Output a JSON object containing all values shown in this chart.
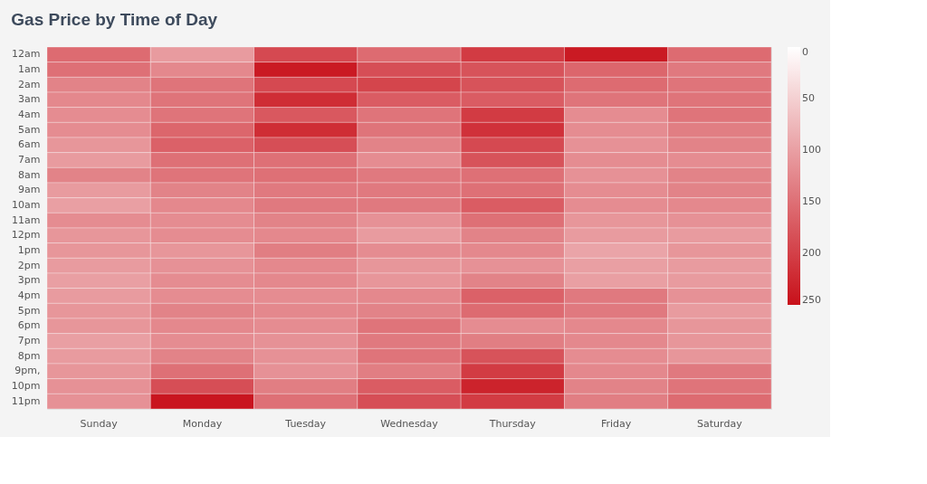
{
  "chart_data": {
    "type": "heatmap",
    "title": "Gas Price by Time of Day",
    "categories": [
      "Sunday",
      "Monday",
      "Tuesday",
      "Wednesday",
      "Thursday",
      "Friday",
      "Saturday"
    ],
    "y_categories": [
      "12am",
      "1am",
      "2am",
      "3am",
      "4am",
      "5am",
      "6am",
      "7am",
      "8am",
      "9am",
      "10am",
      "11am",
      "12pm",
      "1pm",
      "2pm",
      "3pm",
      "4pm",
      "5pm",
      "6pm",
      "7pm",
      "8pm",
      "9pm,",
      "10pm",
      "11pm"
    ],
    "cells": [
      [
        155,
        105,
        190,
        155,
        205,
        240,
        155
      ],
      [
        150,
        125,
        240,
        185,
        180,
        160,
        140
      ],
      [
        130,
        145,
        190,
        195,
        180,
        155,
        145
      ],
      [
        125,
        145,
        220,
        170,
        170,
        145,
        145
      ],
      [
        120,
        145,
        175,
        145,
        205,
        120,
        145
      ],
      [
        120,
        160,
        220,
        145,
        215,
        120,
        135
      ],
      [
        110,
        165,
        185,
        130,
        190,
        115,
        130
      ],
      [
        105,
        150,
        150,
        120,
        180,
        120,
        120
      ],
      [
        130,
        145,
        150,
        140,
        150,
        115,
        130
      ],
      [
        105,
        130,
        140,
        140,
        150,
        120,
        130
      ],
      [
        100,
        125,
        140,
        140,
        170,
        120,
        125
      ],
      [
        120,
        120,
        130,
        115,
        150,
        110,
        115
      ],
      [
        110,
        120,
        125,
        105,
        130,
        105,
        105
      ],
      [
        110,
        110,
        135,
        120,
        125,
        95,
        110
      ],
      [
        105,
        115,
        125,
        110,
        115,
        100,
        105
      ],
      [
        100,
        120,
        125,
        110,
        130,
        100,
        105
      ],
      [
        105,
        120,
        120,
        125,
        165,
        140,
        115
      ],
      [
        110,
        130,
        125,
        130,
        155,
        140,
        105
      ],
      [
        110,
        125,
        120,
        145,
        120,
        125,
        110
      ],
      [
        100,
        120,
        115,
        140,
        135,
        125,
        110
      ],
      [
        105,
        130,
        115,
        145,
        180,
        120,
        110
      ],
      [
        110,
        150,
        115,
        135,
        205,
        125,
        140
      ],
      [
        115,
        185,
        135,
        170,
        230,
        130,
        145
      ],
      [
        115,
        245,
        150,
        185,
        205,
        135,
        155
      ]
    ],
    "clim": [
      0,
      250
    ],
    "cticks": [
      0,
      50,
      100,
      150,
      200,
      250
    ],
    "colors": [
      "#ffffff",
      "#c8101a"
    ],
    "grid": false
  }
}
